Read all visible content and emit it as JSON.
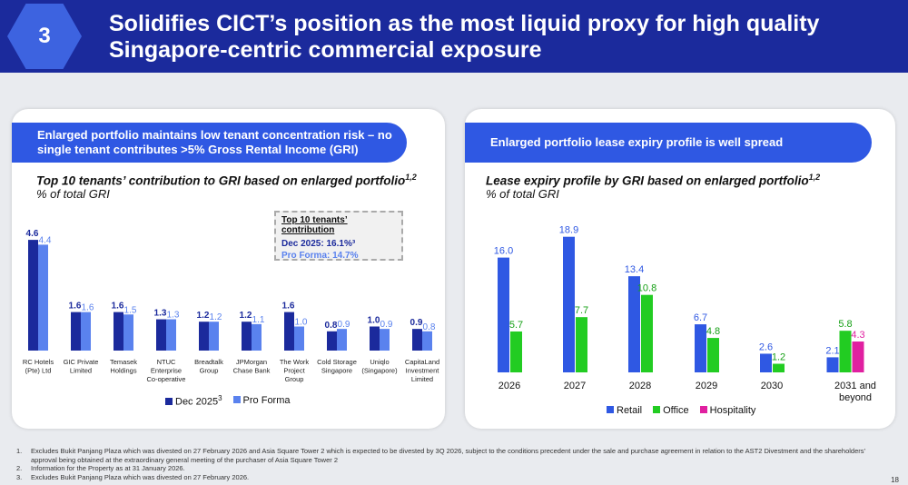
{
  "header": {
    "section_number": "3",
    "title": "Solidifies CICT’s position as the most liquid proxy for high quality Singapore-centric commercial exposure"
  },
  "left": {
    "banner": "Enlarged portfolio maintains low tenant concentration risk – no single tenant contributes >5% Gross Rental Income (GRI)",
    "callout": {
      "heading": "Top 10 tenants’ contribution",
      "dec": "Dec 2025: 16.1%³",
      "pro": "Pro Forma: 14.7%"
    }
  },
  "right": {
    "banner": "Enlarged portfolio lease expiry profile is well spread"
  },
  "chart_data": [
    {
      "type": "bar",
      "title": "Top 10 tenants’ contribution to GRI based on enlarged portfolio",
      "title_sup": "1,2",
      "subtitle": "% of total GRI",
      "categories": [
        "RC Hotels (Pte) Ltd",
        "GIC Private Limited",
        "Temasek Holdings",
        "NTUC Enterprise Co-operative",
        "Breadtalk Group",
        "JPMorgan Chase Bank",
        "The Work Project Group",
        "Cold Storage Singapore",
        "Uniqlo (Singapore)",
        "CapitaLand Investment Limited"
      ],
      "series": [
        {
          "name": "Dec 2025",
          "sup": "3",
          "color": "#1b2a9c",
          "values": [
            4.6,
            1.6,
            1.6,
            1.3,
            1.2,
            1.2,
            1.6,
            0.8,
            1.0,
            0.9
          ]
        },
        {
          "name": "Pro Forma",
          "color": "#5a82ee",
          "values": [
            4.4,
            1.6,
            1.5,
            1.3,
            1.2,
            1.1,
            1.0,
            0.9,
            0.9,
            0.8
          ]
        }
      ],
      "legend": "bottom"
    },
    {
      "type": "bar",
      "title": "Lease expiry profile by GRI based on enlarged portfolio",
      "title_sup": "1,2",
      "subtitle": "% of total GRI",
      "categories": [
        "2026",
        "2027",
        "2028",
        "2029",
        "2030",
        "2031 and beyond"
      ],
      "series": [
        {
          "name": "Retail",
          "color": "#2f58e3",
          "values": [
            16.0,
            18.9,
            13.4,
            6.7,
            2.6,
            2.1
          ]
        },
        {
          "name": "Office",
          "color": "#22cc22",
          "values": [
            5.7,
            7.7,
            10.8,
            4.8,
            1.2,
            5.8
          ]
        },
        {
          "name": "Hospitality",
          "color": "#e020a0",
          "values": [
            null,
            null,
            null,
            null,
            null,
            4.3
          ]
        }
      ],
      "legend": "bottom"
    }
  ],
  "footnotes": [
    "Excludes Bukit Panjang Plaza which was divested on 27 February 2026 and Asia Square Tower 2 which is expected to be divested by 3Q 2026, subject to the conditions precedent under the sale and purchase agreement in relation to the AST2 Divestment and the shareholders’ approval being obtained at the extraordinary general meeting of the purchaser of Asia Square Tower 2",
    "Information for the Property as at 31 January 2026.",
    "Excludes Bukit Panjang Plaza which was divested on 27 February 2026."
  ],
  "footnote_nums": [
    "1.",
    "2.",
    "3."
  ],
  "page_number": "18"
}
